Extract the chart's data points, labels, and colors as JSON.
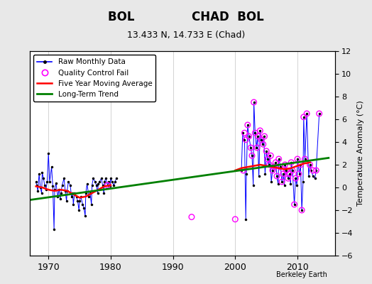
{
  "title_line1": "BOL              CHAD  BOL",
  "title_line2": "13.433 N, 14.733 E (Chad)",
  "ylabel_right": "Temperature Anomaly (°C)",
  "xlim": [
    1967,
    2016
  ],
  "ylim": [
    -6,
    12
  ],
  "yticks": [
    -6,
    -4,
    -2,
    0,
    2,
    4,
    6,
    8,
    10,
    12
  ],
  "xticks": [
    1970,
    1980,
    1990,
    2000,
    2010
  ],
  "bg_color": "#e8e8e8",
  "plot_bg_color": "#ffffff",
  "watermark": "Berkeley Earth",
  "long_term_trend": {
    "x": [
      1967,
      2015
    ],
    "y": [
      -1.1,
      2.6
    ]
  },
  "five_year_avg": {
    "x": [
      1968,
      1969,
      1970,
      1971,
      1972,
      1973,
      1974,
      1975,
      1976,
      1977,
      1978,
      1979,
      1980,
      2000,
      2001,
      2002,
      2003,
      2004,
      2005,
      2006,
      2007,
      2008,
      2009,
      2010,
      2011,
      2012
    ],
    "y": [
      0.1,
      0.0,
      -0.2,
      -0.3,
      -0.2,
      -0.3,
      -0.6,
      -0.9,
      -0.8,
      -0.5,
      -0.2,
      0.1,
      0.2,
      1.5,
      1.7,
      1.8,
      1.9,
      2.0,
      1.9,
      1.8,
      1.7,
      1.6,
      1.7,
      1.9,
      2.1,
      2.2
    ]
  },
  "raw_monthly_early": {
    "x": [
      1968.0,
      1968.1,
      1968.3,
      1968.5,
      1968.7,
      1968.9,
      1969.0,
      1969.2,
      1969.4,
      1969.6,
      1969.8,
      1970.0,
      1970.2,
      1970.5,
      1970.7,
      1970.9,
      1971.0,
      1971.2,
      1971.5,
      1971.7,
      1971.9,
      1972.0,
      1972.2,
      1972.5,
      1972.7,
      1972.9,
      1973.0,
      1973.2,
      1973.5,
      1973.7,
      1973.9,
      1974.0,
      1974.2,
      1974.5,
      1974.7,
      1974.9,
      1975.0,
      1975.2,
      1975.5,
      1975.7,
      1975.9,
      1976.0,
      1976.2,
      1976.5,
      1976.7,
      1976.9,
      1977.0,
      1977.2,
      1977.5,
      1977.7,
      1977.9,
      1978.0,
      1978.2,
      1978.5,
      1978.7,
      1978.9,
      1979.0,
      1979.2,
      1979.5,
      1979.7,
      1979.9,
      1980.0,
      1980.2,
      1980.5,
      1980.7,
      1980.9
    ],
    "y": [
      0.5,
      0.2,
      -0.3,
      1.2,
      0.0,
      -0.5,
      1.3,
      0.8,
      0.2,
      -0.2,
      0.5,
      3.0,
      0.5,
      1.8,
      0.1,
      -3.7,
      -0.2,
      0.4,
      -0.8,
      -0.2,
      -1.0,
      -0.5,
      0.2,
      0.8,
      -0.3,
      -1.2,
      -0.3,
      0.5,
      0.2,
      -0.8,
      -0.5,
      -1.5,
      -0.5,
      -0.8,
      -1.2,
      -2.0,
      -1.2,
      -0.8,
      -1.5,
      -1.8,
      -2.5,
      -0.5,
      0.3,
      -0.8,
      -0.5,
      -1.5,
      0.2,
      0.8,
      0.5,
      0.2,
      -0.5,
      0.3,
      0.5,
      0.8,
      0.2,
      -0.5,
      0.5,
      0.8,
      0.2,
      0.5,
      0.1,
      0.8,
      0.5,
      0.2,
      0.5,
      0.8
    ]
  },
  "qc_fail_points": [
    [
      1979.5,
      0.2
    ],
    [
      1993.0,
      -2.6
    ],
    [
      2000.0,
      -2.8
    ],
    [
      2001.3,
      1.5
    ],
    [
      2001.5,
      4.8
    ],
    [
      2001.7,
      4.2
    ],
    [
      2002.0,
      5.5
    ],
    [
      2002.2,
      4.5
    ],
    [
      2002.5,
      3.5
    ],
    [
      2002.7,
      2.8
    ],
    [
      2003.0,
      7.5
    ],
    [
      2003.2,
      4.8
    ],
    [
      2003.5,
      3.5
    ],
    [
      2003.7,
      4.5
    ],
    [
      2004.0,
      5.0
    ],
    [
      2004.2,
      4.2
    ],
    [
      2004.5,
      3.8
    ],
    [
      2004.7,
      4.5
    ],
    [
      2005.0,
      3.2
    ],
    [
      2005.2,
      2.5
    ],
    [
      2005.5,
      2.0
    ],
    [
      2005.7,
      2.8
    ],
    [
      2006.0,
      1.5
    ],
    [
      2006.2,
      1.8
    ],
    [
      2006.5,
      2.2
    ],
    [
      2006.7,
      1.0
    ],
    [
      2007.0,
      2.5
    ],
    [
      2007.2,
      1.8
    ],
    [
      2007.5,
      0.5
    ],
    [
      2007.7,
      1.2
    ],
    [
      2008.0,
      2.0
    ],
    [
      2008.2,
      1.5
    ],
    [
      2008.5,
      0.8
    ],
    [
      2008.7,
      1.2
    ],
    [
      2009.0,
      2.2
    ],
    [
      2009.2,
      1.5
    ],
    [
      2009.5,
      -1.5
    ],
    [
      2009.7,
      0.8
    ],
    [
      2010.0,
      2.5
    ],
    [
      2010.2,
      1.2
    ],
    [
      2010.5,
      2.0
    ],
    [
      2010.7,
      -2.0
    ],
    [
      2011.0,
      6.2
    ],
    [
      2011.2,
      2.5
    ],
    [
      2011.5,
      6.5
    ],
    [
      2012.0,
      2.0
    ],
    [
      2012.5,
      1.5
    ],
    [
      2013.0,
      1.5
    ],
    [
      2013.5,
      6.5
    ]
  ],
  "raw_monthly_late_x": [
    2001.0,
    2001.2,
    2001.5,
    2001.7,
    2001.8,
    2002.0,
    2002.2,
    2002.5,
    2002.7,
    2002.9,
    2003.0,
    2003.2,
    2003.4,
    2003.6,
    2003.8,
    2004.0,
    2004.2,
    2004.4,
    2004.6,
    2004.8,
    2005.0,
    2005.2,
    2005.4,
    2005.6,
    2005.8,
    2006.0,
    2006.2,
    2006.5,
    2006.7,
    2006.9,
    2007.0,
    2007.3,
    2007.5,
    2007.7,
    2007.9,
    2008.0,
    2008.2,
    2008.5,
    2008.7,
    2008.9,
    2009.0,
    2009.2,
    2009.5,
    2009.7,
    2009.9,
    2010.0,
    2010.3,
    2010.5,
    2010.7,
    2010.9,
    2011.0,
    2011.2,
    2011.5,
    2011.8,
    2012.0,
    2012.2,
    2012.5,
    2012.8,
    2013.0,
    2013.5
  ],
  "raw_monthly_late_y": [
    1.5,
    4.8,
    4.2,
    -2.8,
    1.2,
    5.5,
    4.5,
    3.5,
    2.8,
    0.2,
    7.5,
    4.8,
    3.5,
    4.5,
    1.0,
    5.0,
    4.2,
    3.8,
    4.5,
    1.2,
    3.2,
    2.5,
    2.0,
    2.8,
    0.5,
    1.5,
    1.8,
    2.2,
    1.0,
    0.3,
    2.5,
    1.8,
    0.5,
    1.2,
    0.2,
    2.0,
    1.5,
    0.8,
    1.2,
    0.3,
    2.2,
    1.5,
    -1.5,
    0.8,
    0.2,
    2.5,
    1.2,
    2.0,
    -2.0,
    0.5,
    6.2,
    2.5,
    6.5,
    1.0,
    2.0,
    1.5,
    1.0,
    0.8,
    1.5,
    6.5
  ]
}
